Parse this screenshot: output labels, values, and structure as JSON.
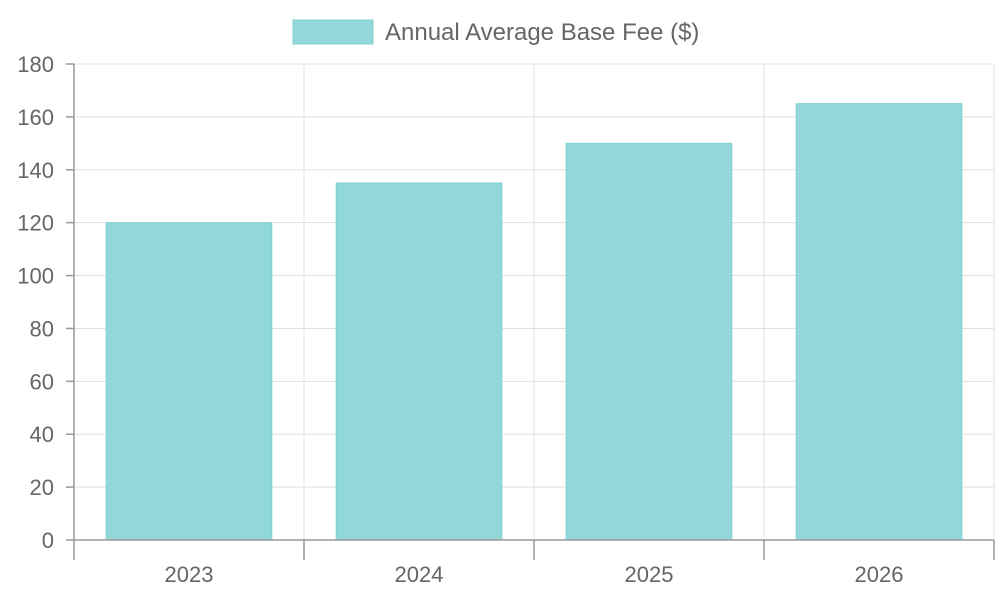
{
  "chart_data": {
    "type": "bar",
    "categories": [
      "2023",
      "2024",
      "2025",
      "2026"
    ],
    "series": [
      {
        "name": "Annual Average Base Fee ($)",
        "values": [
          120,
          135,
          150,
          165
        ]
      }
    ],
    "ylim": [
      0,
      180
    ],
    "yticks": [
      0,
      20,
      40,
      60,
      80,
      100,
      120,
      140,
      160,
      180
    ],
    "grid": true,
    "legend": "top-center",
    "colors": {
      "bar_fill": "#92d8d8",
      "bar_stroke": "#7fcfcf"
    }
  }
}
